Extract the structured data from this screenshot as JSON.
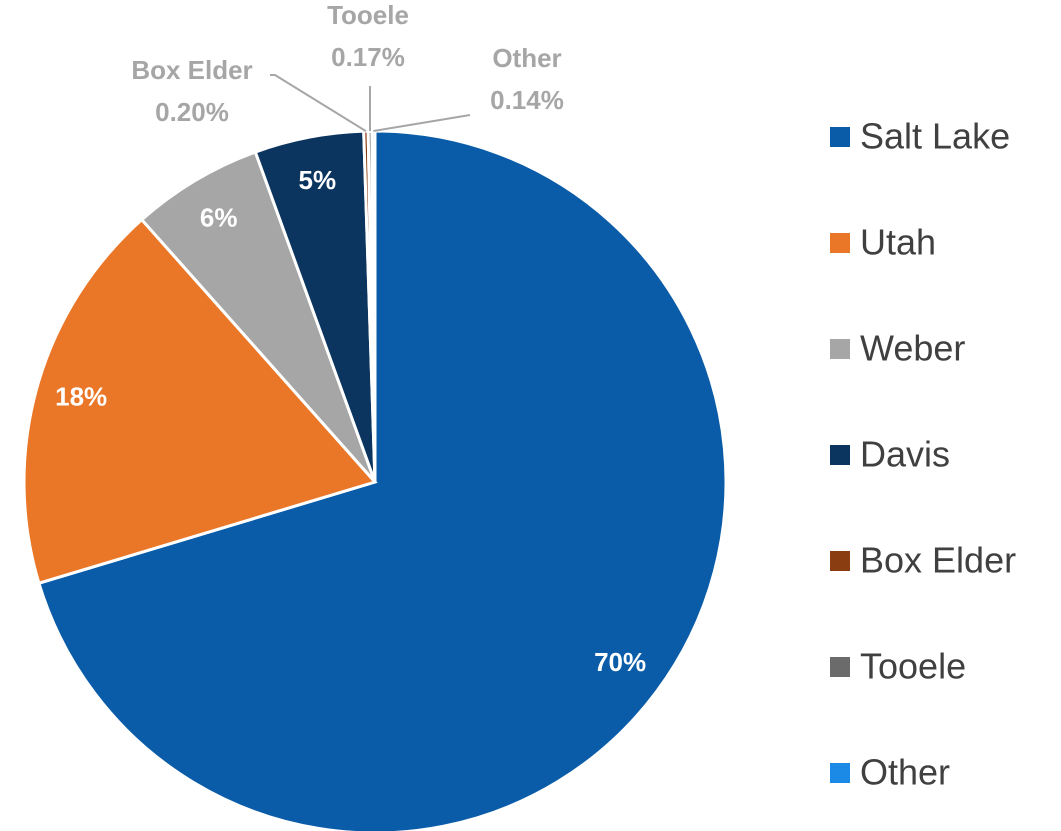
{
  "chart_data": {
    "type": "pie",
    "categories": [
      "Salt Lake",
      "Utah",
      "Weber",
      "Davis",
      "Box Elder",
      "Tooele",
      "Other"
    ],
    "values": [
      70,
      18,
      6,
      5,
      0.2,
      0.17,
      0.14
    ],
    "value_labels": [
      "70%",
      "18%",
      "6%",
      "5%",
      "0.20%",
      "0.17%",
      "0.14%"
    ],
    "colors": [
      "#0a5ca8",
      "#ea7628",
      "#a6a6a6",
      "#0b355f",
      "#8b3d12",
      "#6b6b6b",
      "#1a8ae6"
    ],
    "legend": "right"
  }
}
